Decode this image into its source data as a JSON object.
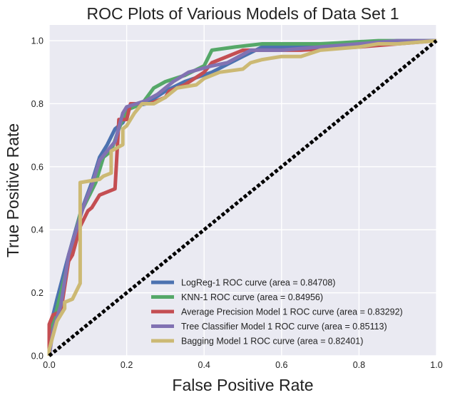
{
  "chart_data": {
    "type": "line",
    "title": "ROC Plots of Various Models of Data Set 1",
    "xlabel": "False Positive Rate",
    "ylabel": "True Positive Rate",
    "xlim": [
      0.0,
      1.0
    ],
    "ylim": [
      0.0,
      1.05
    ],
    "x_ticks": [
      "0.0",
      "0.2",
      "0.4",
      "0.6",
      "0.8",
      "1.0"
    ],
    "y_ticks": [
      "0.0",
      "0.2",
      "0.4",
      "0.6",
      "0.8",
      "1.0"
    ],
    "grid": true,
    "legend_position": "lower right",
    "background_color": "#EAEAF2",
    "diagonal": {
      "x": [
        0,
        1
      ],
      "y": [
        0,
        1
      ],
      "color": "#000000",
      "style": "dotted"
    },
    "series": [
      {
        "name": "LogReg-1 ROC curve (area = 0.84708)",
        "color": "#4C72B0",
        "x": [
          0.0,
          0.0,
          0.02,
          0.05,
          0.08,
          0.11,
          0.13,
          0.15,
          0.17,
          0.19,
          0.21,
          0.25,
          0.3,
          0.35,
          0.42,
          0.5,
          0.55,
          0.62,
          0.7,
          0.8,
          0.9,
          1.0
        ],
        "y": [
          0.0,
          0.08,
          0.18,
          0.32,
          0.45,
          0.55,
          0.63,
          0.67,
          0.72,
          0.74,
          0.79,
          0.8,
          0.84,
          0.87,
          0.9,
          0.95,
          0.98,
          0.98,
          0.99,
          0.99,
          1.0,
          1.0
        ]
      },
      {
        "name": "KNN-1 ROC curve (area = 0.84956)",
        "color": "#55A868",
        "x": [
          0.0,
          0.0,
          0.02,
          0.05,
          0.08,
          0.12,
          0.14,
          0.16,
          0.18,
          0.2,
          0.24,
          0.27,
          0.3,
          0.35,
          0.4,
          0.42,
          0.48,
          0.55,
          0.7,
          0.85,
          1.0
        ],
        "y": [
          0.0,
          0.05,
          0.15,
          0.3,
          0.45,
          0.55,
          0.63,
          0.65,
          0.72,
          0.78,
          0.8,
          0.85,
          0.87,
          0.89,
          0.92,
          0.97,
          0.98,
          0.99,
          0.99,
          1.0,
          1.0
        ]
      },
      {
        "name": "Average Precision Model 1 ROC curve (area = 0.83292)",
        "color": "#C44E52",
        "x": [
          0.0,
          0.0,
          0.01,
          0.03,
          0.05,
          0.06,
          0.08,
          0.1,
          0.11,
          0.13,
          0.17,
          0.18,
          0.2,
          0.21,
          0.26,
          0.3,
          0.31,
          0.35,
          0.4,
          0.42,
          0.5,
          0.65,
          0.8,
          1.0
        ],
        "y": [
          0.0,
          0.1,
          0.13,
          0.14,
          0.3,
          0.32,
          0.41,
          0.46,
          0.47,
          0.51,
          0.53,
          0.75,
          0.75,
          0.8,
          0.8,
          0.82,
          0.84,
          0.86,
          0.9,
          0.93,
          0.97,
          0.97,
          0.98,
          1.0
        ]
      },
      {
        "name": "Tree Classifier Model 1 ROC curve (area = 0.85113)",
        "color": "#8172B2",
        "x": [
          0.0,
          0.01,
          0.03,
          0.05,
          0.09,
          0.11,
          0.13,
          0.15,
          0.17,
          0.19,
          0.2,
          0.25,
          0.28,
          0.32,
          0.36,
          0.42,
          0.46,
          0.52,
          0.6,
          0.7,
          0.8,
          0.9,
          1.0
        ],
        "y": [
          0.0,
          0.08,
          0.16,
          0.32,
          0.48,
          0.54,
          0.62,
          0.65,
          0.68,
          0.77,
          0.79,
          0.81,
          0.83,
          0.87,
          0.9,
          0.92,
          0.93,
          0.97,
          0.97,
          0.98,
          0.99,
          1.0,
          1.0
        ]
      },
      {
        "name": "Bagging Model 1 ROC curve (area = 0.82401)",
        "color": "#CCB974",
        "x": [
          0.0,
          0.0,
          0.02,
          0.04,
          0.04,
          0.06,
          0.08,
          0.08,
          0.13,
          0.14,
          0.16,
          0.16,
          0.19,
          0.19,
          0.2,
          0.22,
          0.24,
          0.27,
          0.3,
          0.33,
          0.38,
          0.4,
          0.42,
          0.44,
          0.5,
          0.52,
          0.55,
          0.6,
          0.65,
          0.7,
          0.8,
          0.85,
          0.9,
          1.0
        ],
        "y": [
          0.0,
          0.02,
          0.11,
          0.15,
          0.17,
          0.18,
          0.23,
          0.55,
          0.56,
          0.57,
          0.58,
          0.65,
          0.67,
          0.72,
          0.73,
          0.77,
          0.8,
          0.8,
          0.82,
          0.85,
          0.86,
          0.88,
          0.89,
          0.9,
          0.91,
          0.93,
          0.94,
          0.95,
          0.95,
          0.97,
          0.98,
          0.99,
          0.99,
          1.0
        ]
      }
    ]
  }
}
